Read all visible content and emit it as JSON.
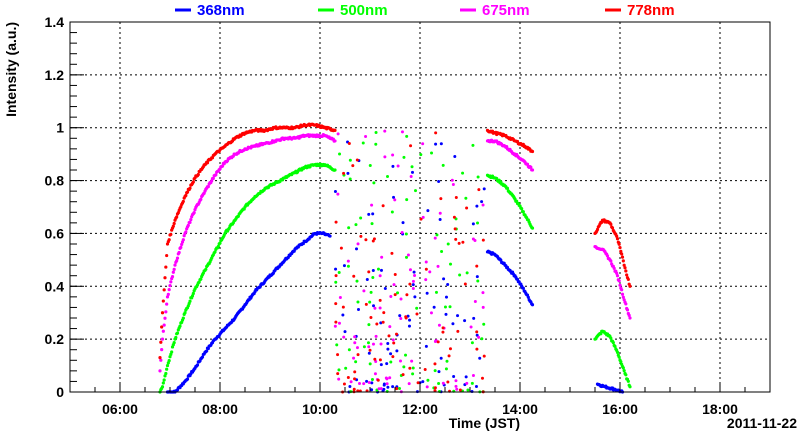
{
  "chart_data": {
    "type": "scatter",
    "title": "",
    "xlabel": "Time (JST)",
    "ylabel": "Intensity (a.u.)",
    "date_label": "2011-11-22",
    "x_unit": "hours",
    "xlim": [
      5.0,
      19.0
    ],
    "ylim": [
      0,
      1.4
    ],
    "x_ticks": [
      {
        "value": 6,
        "label": "06:00"
      },
      {
        "value": 8,
        "label": "08:00"
      },
      {
        "value": 10,
        "label": "10:00"
      },
      {
        "value": 12,
        "label": "12:00"
      },
      {
        "value": 14,
        "label": "14:00"
      },
      {
        "value": 16,
        "label": "16:00"
      },
      {
        "value": 18,
        "label": "18:00"
      }
    ],
    "y_ticks": [
      {
        "value": 0,
        "label": "0"
      },
      {
        "value": 0.2,
        "label": "0.2"
      },
      {
        "value": 0.4,
        "label": "0.4"
      },
      {
        "value": 0.6,
        "label": "0.6"
      },
      {
        "value": 0.8,
        "label": "0.8"
      },
      {
        "value": 1.0,
        "label": "1"
      },
      {
        "value": 1.2,
        "label": "1.2"
      },
      {
        "value": 1.4,
        "label": "1.4"
      }
    ],
    "grid": true,
    "legend_position": "top",
    "series": [
      {
        "name": "368nm",
        "color": "#0000ff",
        "points": [
          [
            6.95,
            0.0
          ],
          [
            7.1,
            0.0
          ],
          [
            7.3,
            0.04
          ],
          [
            7.5,
            0.09
          ],
          [
            7.7,
            0.15
          ],
          [
            7.9,
            0.2
          ],
          [
            8.1,
            0.24
          ],
          [
            8.2,
            0.26
          ],
          [
            8.3,
            0.28
          ],
          [
            8.5,
            0.33
          ],
          [
            8.7,
            0.38
          ],
          [
            8.9,
            0.42
          ],
          [
            9.1,
            0.46
          ],
          [
            9.3,
            0.5
          ],
          [
            9.5,
            0.54
          ],
          [
            9.7,
            0.57
          ],
          [
            9.9,
            0.6
          ],
          [
            10.05,
            0.6
          ],
          [
            10.2,
            0.59
          ],
          [
            13.35,
            0.53
          ],
          [
            13.5,
            0.52
          ],
          [
            13.7,
            0.48
          ],
          [
            13.9,
            0.44
          ],
          [
            14.1,
            0.38
          ],
          [
            14.25,
            0.33
          ],
          [
            15.55,
            0.03
          ],
          [
            15.7,
            0.02
          ],
          [
            15.9,
            0.01
          ],
          [
            16.05,
            0.0
          ]
        ]
      },
      {
        "name": "500nm",
        "color": "#00ff00",
        "points": [
          [
            6.8,
            0.0
          ],
          [
            6.85,
            0.02
          ],
          [
            6.95,
            0.1
          ],
          [
            7.1,
            0.2
          ],
          [
            7.3,
            0.3
          ],
          [
            7.5,
            0.39
          ],
          [
            7.7,
            0.46
          ],
          [
            7.9,
            0.53
          ],
          [
            8.1,
            0.6
          ],
          [
            8.3,
            0.65
          ],
          [
            8.5,
            0.7
          ],
          [
            8.7,
            0.74
          ],
          [
            8.9,
            0.77
          ],
          [
            9.1,
            0.79
          ],
          [
            9.3,
            0.81
          ],
          [
            9.5,
            0.83
          ],
          [
            9.7,
            0.85
          ],
          [
            9.9,
            0.86
          ],
          [
            10.1,
            0.86
          ],
          [
            10.3,
            0.84
          ],
          [
            13.35,
            0.82
          ],
          [
            13.5,
            0.81
          ],
          [
            13.7,
            0.78
          ],
          [
            13.9,
            0.73
          ],
          [
            14.1,
            0.67
          ],
          [
            14.25,
            0.62
          ],
          [
            15.5,
            0.2
          ],
          [
            15.65,
            0.23
          ],
          [
            15.8,
            0.21
          ],
          [
            15.95,
            0.15
          ],
          [
            16.1,
            0.07
          ],
          [
            16.2,
            0.02
          ]
        ]
      },
      {
        "name": "675nm",
        "color": "#ff00ff",
        "points": [
          [
            6.8,
            0.08
          ],
          [
            6.85,
            0.2
          ],
          [
            6.95,
            0.36
          ],
          [
            7.1,
            0.48
          ],
          [
            7.3,
            0.6
          ],
          [
            7.5,
            0.69
          ],
          [
            7.7,
            0.76
          ],
          [
            7.9,
            0.82
          ],
          [
            8.1,
            0.87
          ],
          [
            8.3,
            0.9
          ],
          [
            8.5,
            0.92
          ],
          [
            8.7,
            0.93
          ],
          [
            8.9,
            0.94
          ],
          [
            9.1,
            0.95
          ],
          [
            9.3,
            0.96
          ],
          [
            9.5,
            0.96
          ],
          [
            9.7,
            0.97
          ],
          [
            9.9,
            0.97
          ],
          [
            10.1,
            0.97
          ],
          [
            10.3,
            0.95
          ],
          [
            13.35,
            0.95
          ],
          [
            13.5,
            0.95
          ],
          [
            13.7,
            0.93
          ],
          [
            13.9,
            0.9
          ],
          [
            14.1,
            0.87
          ],
          [
            14.25,
            0.84
          ],
          [
            15.5,
            0.55
          ],
          [
            15.65,
            0.54
          ],
          [
            15.8,
            0.5
          ],
          [
            15.95,
            0.44
          ],
          [
            16.1,
            0.34
          ],
          [
            16.2,
            0.28
          ]
        ]
      },
      {
        "name": "778nm",
        "color": "#ff0000",
        "points": [
          [
            6.8,
            0.13
          ],
          [
            6.85,
            0.3
          ],
          [
            6.95,
            0.56
          ],
          [
            7.1,
            0.65
          ],
          [
            7.3,
            0.74
          ],
          [
            7.5,
            0.81
          ],
          [
            7.7,
            0.86
          ],
          [
            7.9,
            0.9
          ],
          [
            8.1,
            0.93
          ],
          [
            8.3,
            0.96
          ],
          [
            8.5,
            0.98
          ],
          [
            8.7,
            0.99
          ],
          [
            8.9,
            0.99
          ],
          [
            9.1,
            1.0
          ],
          [
            9.3,
            1.0
          ],
          [
            9.5,
            1.0
          ],
          [
            9.7,
            1.01
          ],
          [
            9.9,
            1.01
          ],
          [
            10.1,
            1.0
          ],
          [
            10.3,
            0.99
          ],
          [
            13.35,
            0.99
          ],
          [
            13.5,
            0.98
          ],
          [
            13.7,
            0.97
          ],
          [
            13.9,
            0.95
          ],
          [
            14.1,
            0.93
          ],
          [
            14.25,
            0.91
          ],
          [
            15.5,
            0.6
          ],
          [
            15.65,
            0.65
          ],
          [
            15.8,
            0.64
          ],
          [
            15.95,
            0.58
          ],
          [
            16.1,
            0.47
          ],
          [
            16.2,
            0.4
          ]
        ]
      }
    ]
  }
}
